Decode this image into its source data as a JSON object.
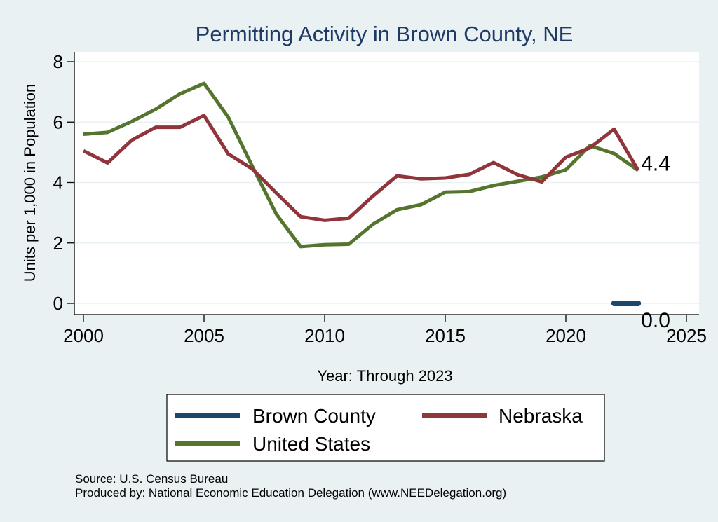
{
  "chart_data": {
    "type": "line",
    "title": "Permitting Activity in Brown County, NE",
    "xlabel": "Year: Through 2023",
    "ylabel": "Units per 1,000 in Population",
    "xlim": [
      2000,
      2025
    ],
    "ylim": [
      0,
      8
    ],
    "xticks": [
      2000,
      2005,
      2010,
      2015,
      2020,
      2025
    ],
    "yticks": [
      0,
      2,
      4,
      6,
      8
    ],
    "xtick_labels": [
      "2000",
      "2005",
      "2010",
      "2015",
      "2020",
      "2025"
    ],
    "ytick_labels": [
      "0",
      "2",
      "4",
      "6",
      "8"
    ],
    "grid": true,
    "series": [
      {
        "name": "Brown County",
        "color": "#1a476f",
        "x": [
          2022,
          2023
        ],
        "values": [
          0.0,
          0.0
        ],
        "end_label": "0.0"
      },
      {
        "name": "Nebraska",
        "color": "#90353b",
        "x": [
          2000,
          2001,
          2002,
          2003,
          2004,
          2005,
          2006,
          2007,
          2008,
          2009,
          2010,
          2011,
          2012,
          2013,
          2014,
          2015,
          2016,
          2017,
          2018,
          2019,
          2020,
          2021,
          2022,
          2023
        ],
        "values": [
          5.05,
          4.65,
          5.4,
          5.83,
          5.83,
          6.22,
          4.95,
          4.45,
          3.65,
          2.87,
          2.75,
          2.82,
          3.55,
          4.22,
          4.12,
          4.15,
          4.27,
          4.66,
          4.26,
          4.02,
          4.84,
          5.15,
          5.77,
          4.4
        ],
        "end_label": "4.4"
      },
      {
        "name": "United States",
        "color": "#55752f",
        "x": [
          2000,
          2001,
          2002,
          2003,
          2004,
          2005,
          2006,
          2007,
          2008,
          2009,
          2010,
          2011,
          2012,
          2013,
          2014,
          2015,
          2016,
          2017,
          2018,
          2019,
          2020,
          2021,
          2022,
          2023
        ],
        "values": [
          5.6,
          5.66,
          6.02,
          6.43,
          6.93,
          7.28,
          6.17,
          4.54,
          2.95,
          1.88,
          1.94,
          1.96,
          2.62,
          3.1,
          3.27,
          3.68,
          3.7,
          3.9,
          4.04,
          4.18,
          4.42,
          5.22,
          4.96,
          4.4
        ]
      }
    ],
    "legend": {
      "placement": "bottom",
      "entries": [
        "Brown County",
        "Nebraska",
        "United States"
      ]
    }
  },
  "notes": {
    "source": "Source: U.S. Census Bureau",
    "produced_by": "Produced by: National Economic Education Delegation (www.NEEDelegation.org)"
  },
  "colors": {
    "background": "#eaf1f3",
    "plot_background": "#ffffff",
    "title": "#1f3a64"
  }
}
